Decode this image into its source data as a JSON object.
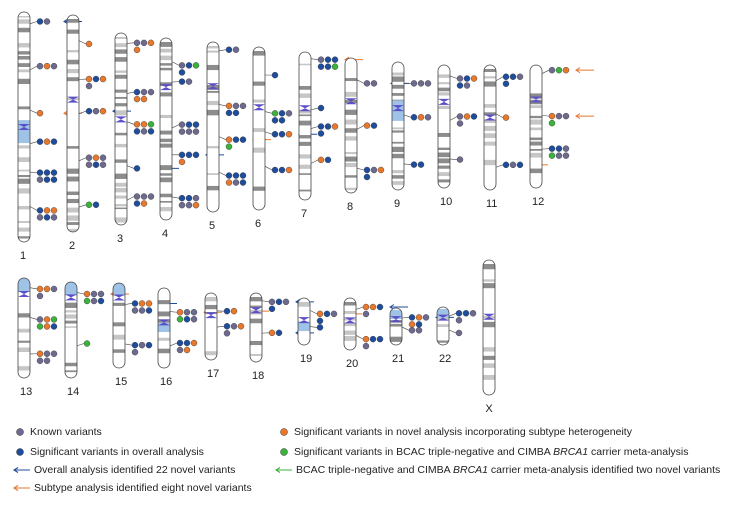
{
  "chromosomes": [
    "1",
    "2",
    "3",
    "4",
    "5",
    "6",
    "7",
    "8",
    "9",
    "10",
    "11",
    "12",
    "13",
    "14",
    "15",
    "16",
    "17",
    "18",
    "19",
    "20",
    "21",
    "22",
    "X"
  ],
  "legend": [
    {
      "parts": [
        "Known variants"
      ]
    },
    {
      "parts": [
        "Significant variants in overall analysis"
      ]
    },
    {
      "parts": [
        "Overall analysis identified 22 novel variants"
      ]
    },
    {
      "parts": [
        "Subtype analysis identified eight novel variants"
      ]
    },
    {
      "parts": [
        "Significant variants in novel analysis incorporating subtype heterogeneity"
      ]
    },
    {
      "parts": [
        "Significant variants in BCAC triple-negative and CIMBA ",
        "BRCA1",
        " carrier meta-analysis"
      ]
    },
    {
      "parts": [
        "BCAC triple-negative and CIMBA ",
        "BRCA1",
        " carrier meta-analysis identified two novel variants"
      ]
    }
  ]
}
